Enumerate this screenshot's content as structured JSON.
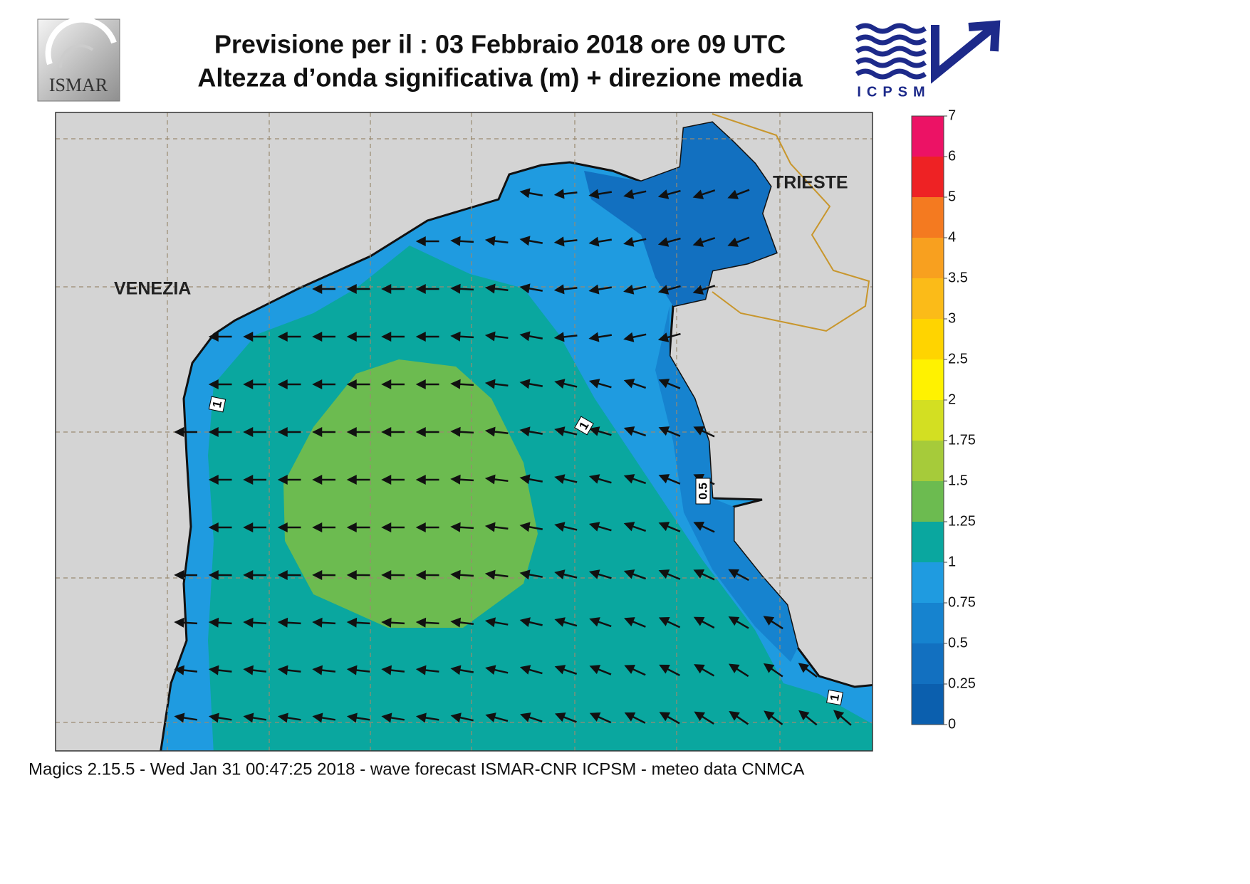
{
  "header": {
    "title": "Previsione per il  :  03  Febbraio 2018   ore 09 UTC",
    "subtitle": "Altezza d’onda significativa (m) + direzione media",
    "logo_left": "ISMAR",
    "logo_right": "ICPSM"
  },
  "map": {
    "labels": [
      "VENEZIA",
      "TRIESTE"
    ],
    "contour_labels": [
      "1",
      "1",
      "0.5",
      "1"
    ]
  },
  "legend": {
    "ticks": [
      0,
      0.25,
      0.5,
      0.75,
      1,
      1.25,
      1.5,
      1.75,
      2,
      2.5,
      3,
      3.5,
      4,
      5,
      6,
      7
    ],
    "colors": [
      "#0b5fae",
      "#1270c0",
      "#1683cf",
      "#1f9be0",
      "#0aa79f",
      "#6cbb50",
      "#a6cb3a",
      "#d3df22",
      "#fff200",
      "#ffd400",
      "#fbbb18",
      "#f8a01f",
      "#f47a20",
      "#ee2224",
      "#ec1265"
    ]
  },
  "footer": "Magics 2.15.5 - Wed Jan 31 00:47:25 2018 - wave forecast  ISMAR-CNR  ICPSM - meteo data   CNMCA"
}
